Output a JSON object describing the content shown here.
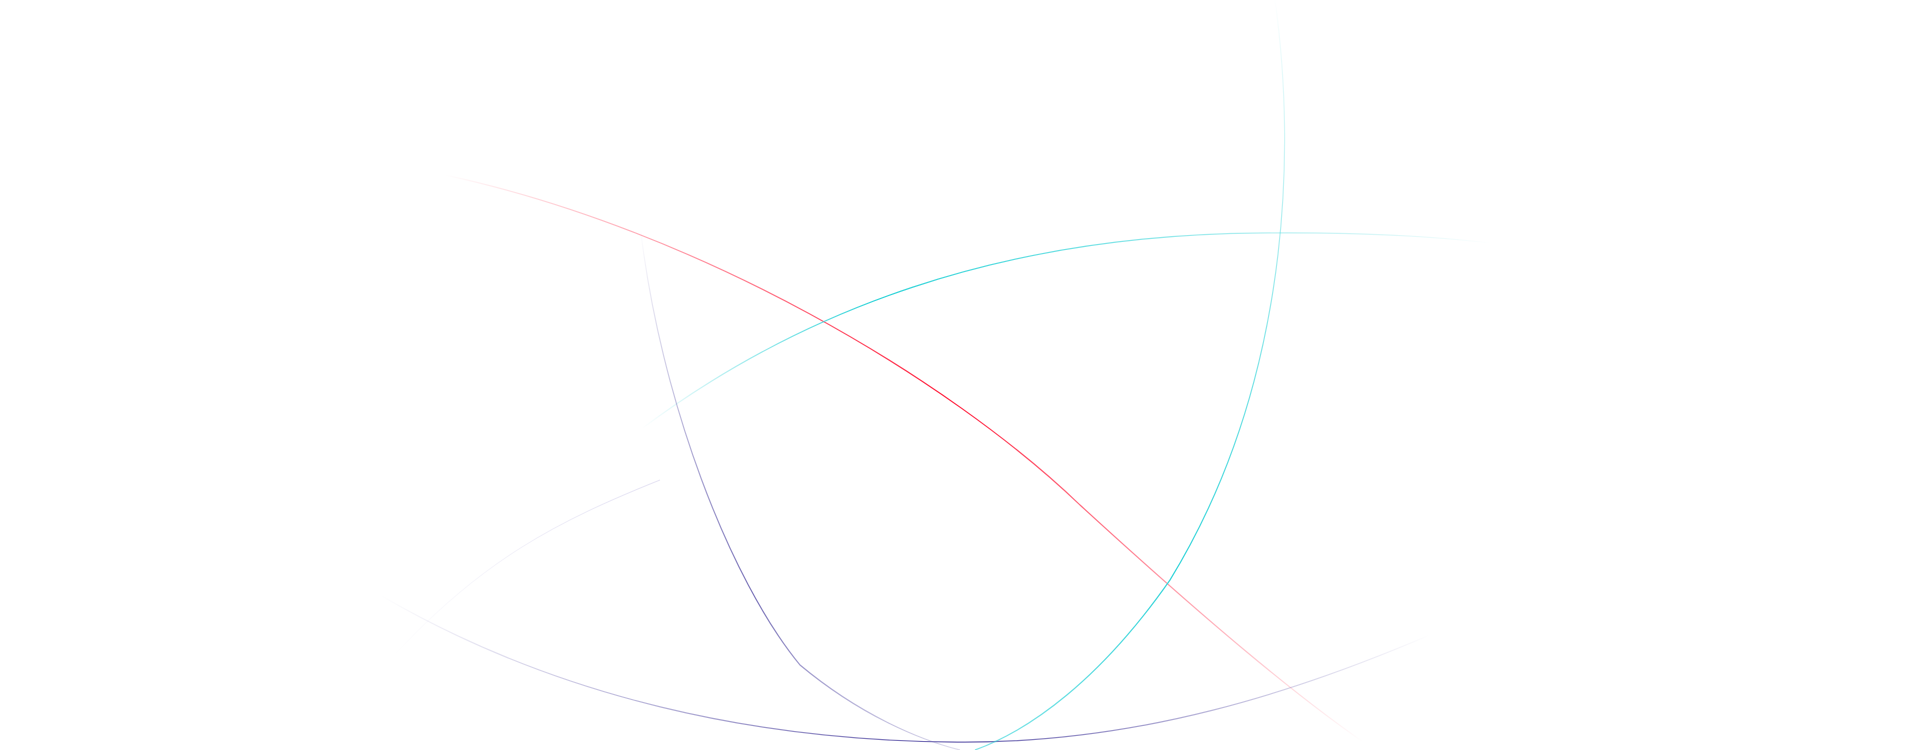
{
  "colors": {
    "background": "#ffffff",
    "red": "#ff1f3d",
    "cyan": "#2fd3d8",
    "purple": "#6b63b0"
  }
}
